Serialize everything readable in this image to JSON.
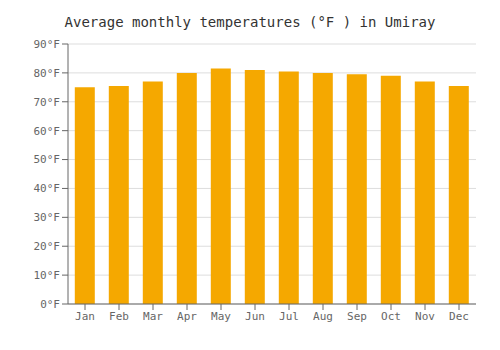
{
  "chart_data": {
    "type": "bar",
    "title": "Average monthly temperatures (°F ) in Umiray",
    "categories": [
      "Jan",
      "Feb",
      "Mar",
      "Apr",
      "May",
      "Jun",
      "Jul",
      "Aug",
      "Sep",
      "Oct",
      "Nov",
      "Dec"
    ],
    "values": [
      75,
      75.5,
      77,
      80,
      81.5,
      81,
      80.5,
      80,
      79.5,
      79,
      77,
      75.5
    ],
    "color": "#F5A800",
    "ylim": [
      0,
      90
    ],
    "yticks": [
      {
        "value": 0,
        "label": "0°F"
      },
      {
        "value": 10,
        "label": "10°F"
      },
      {
        "value": 20,
        "label": "20°F"
      },
      {
        "value": 30,
        "label": "30°F"
      },
      {
        "value": 40,
        "label": "40°F"
      },
      {
        "value": 50,
        "label": "50°F"
      },
      {
        "value": 60,
        "label": "60°F"
      },
      {
        "value": 70,
        "label": "70°F"
      },
      {
        "value": 80,
        "label": "80°F"
      },
      {
        "value": 90,
        "label": "90°F"
      }
    ],
    "grid": true
  }
}
